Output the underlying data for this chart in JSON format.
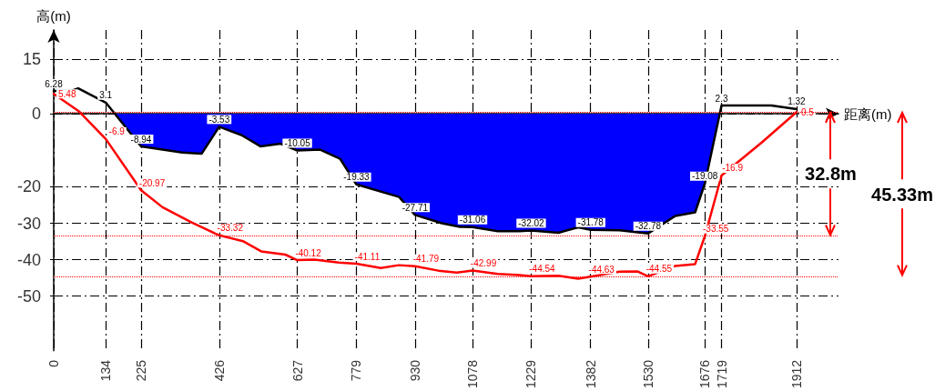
{
  "chart_data": {
    "type": "line",
    "xlabel": "距离(m)",
    "ylabel": "高(m)",
    "xlim": [
      0,
      2020
    ],
    "xticks": [
      0,
      134,
      225,
      426,
      627,
      779,
      930,
      1078,
      1229,
      1382,
      1530,
      1676,
      1719,
      1912
    ],
    "ylim": [
      -65,
      23
    ],
    "yticks": [
      15,
      0,
      -20,
      -30,
      -40,
      -50
    ],
    "grid": true,
    "marker": "none",
    "line_style": "solid",
    "series": [
      {
        "type": "area",
        "color": "#0000ff",
        "x": [
          157,
          225,
          331,
          381,
          426,
          483,
          532,
          584,
          627,
          686,
          737,
          779,
          889,
          930,
          999,
          1046,
          1078,
          1143,
          1198,
          1229,
          1299,
          1350,
          1382,
          1456,
          1530,
          1600,
          1651,
          1676,
          1714
        ],
        "values": [
          0,
          -8.94,
          -10.6,
          -10.9,
          -3.53,
          -5.8,
          -8.9,
          -8.2,
          -10.05,
          -9.8,
          -12.3,
          -19.33,
          -22.8,
          -27.71,
          -30,
          -31,
          -31.06,
          -32.2,
          -32.2,
          -32.02,
          -32.6,
          -31.1,
          -31.78,
          -31.9,
          -32.78,
          -28,
          -27,
          -19.08,
          0
        ]
      },
      {
        "color": "#000000",
        "x": [
          0,
          45,
          63,
          134,
          225,
          331,
          381,
          426,
          483,
          532,
          584,
          627,
          686,
          737,
          779,
          889,
          930,
          999,
          1046,
          1078,
          1143,
          1198,
          1229,
          1299,
          1350,
          1382,
          1456,
          1530,
          1600,
          1651,
          1676,
          1719,
          1847,
          1912
        ],
        "values": [
          6.28,
          6.3,
          7,
          3.1,
          -8.94,
          -10.6,
          -10.9,
          -3.53,
          -5.8,
          -8.9,
          -8.2,
          -10.05,
          -9.8,
          -12.3,
          -19.33,
          -22.8,
          -27.71,
          -30,
          -31,
          -31.06,
          -32.2,
          -32.2,
          -32.02,
          -32.6,
          -31.1,
          -31.78,
          -31.9,
          -32.78,
          -28,
          -27,
          -19.08,
          2.3,
          2.3,
          1.32
        ],
        "value_labels": [
          "6.28",
          null,
          null,
          "3.1",
          "-8.94",
          null,
          null,
          "-3.53",
          null,
          null,
          null,
          "-10.05",
          null,
          null,
          "-19.33",
          null,
          "-27.71",
          null,
          null,
          "-31.06",
          null,
          null,
          "-32.02",
          null,
          null,
          "-31.78",
          null,
          "-32.78",
          null,
          null,
          "-19.08",
          "2.3",
          null,
          "1.32"
        ]
      },
      {
        "color": "#ff0000",
        "x": [
          0,
          66,
          134,
          225,
          280,
          355,
          426,
          487,
          534,
          596,
          627,
          671,
          734,
          779,
          842,
          888,
          930,
          990,
          1037,
          1078,
          1143,
          1198,
          1229,
          1299,
          1350,
          1382,
          1456,
          1502,
          1530,
          1600,
          1651,
          1676,
          1719,
          1823,
          1912
        ],
        "values": [
          5.48,
          0.6,
          -6.9,
          -20.97,
          -25.6,
          -29.8,
          -33.32,
          -34.9,
          -37.7,
          -38.6,
          -40.12,
          -40,
          -40.8,
          -41.11,
          -42.3,
          -41.5,
          -41.79,
          -43,
          -43.5,
          -42.99,
          -43.9,
          -44.2,
          -44.54,
          -44.4,
          -45.2,
          -44.63,
          -43.3,
          -43.2,
          -44.55,
          -41.7,
          -41.2,
          -33.55,
          -16.9,
          -7.8,
          0.5
        ],
        "value_labels": [
          "5.48",
          null,
          "-6.9",
          "-20.97",
          null,
          null,
          "-33.32",
          null,
          null,
          null,
          "-40.12",
          null,
          null,
          "-41.11",
          null,
          null,
          "-41.79",
          null,
          null,
          "-42.99",
          null,
          null,
          "-44.54",
          null,
          null,
          "-44.63",
          null,
          null,
          "-44.55",
          null,
          null,
          "-33.55",
          "-16.9",
          null,
          "0.5"
        ]
      }
    ],
    "ref_lines": [
      {
        "axis": "y",
        "value": 0.5,
        "color": "#ff0000",
        "line_style": "dotted"
      },
      {
        "axis": "y",
        "value": -33.55,
        "color": "#ff0000",
        "line_style": "dotted"
      },
      {
        "axis": "y",
        "value": -44.55,
        "color": "#ff0000",
        "line_style": "dotted"
      }
    ],
    "annotations": [
      {
        "text": "32.8m",
        "x": 2000,
        "y": -33.55
      },
      "45.33m"
    ]
  }
}
